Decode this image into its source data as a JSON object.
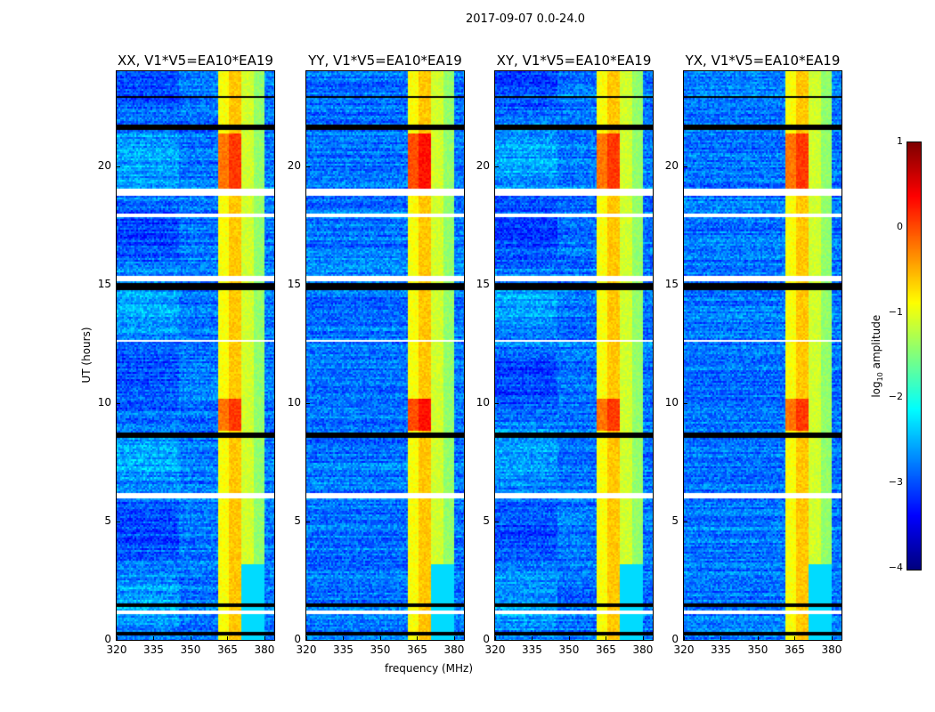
{
  "suptitle": "2017-09-07 0.0-24.0",
  "chart_data": {
    "type": "heatmap",
    "title": "2017-09-07 0.0-24.0",
    "xlabel": "frequency (MHz)",
    "ylabel": "UT (hours)",
    "xlim": [
      320,
      384
    ],
    "ylim": [
      0,
      24
    ],
    "xticks": [
      320,
      335,
      350,
      365,
      380
    ],
    "yticks": [
      0,
      5,
      10,
      15,
      20
    ],
    "panels": [
      {
        "title": "XX, V1*V5=EA10*EA19"
      },
      {
        "title": "YY, V1*V5=EA10*EA19"
      },
      {
        "title": "XY, V1*V5=EA10*EA19"
      },
      {
        "title": "YX, V1*V5=EA10*EA19"
      }
    ],
    "background_log_amplitude": -2.8,
    "bands": [
      {
        "f_start": 360.5,
        "f_end": 365.0,
        "log_amplitude": -0.9
      },
      {
        "f_start": 365.3,
        "f_end": 370.0,
        "log_amplitude": -0.6
      },
      {
        "f_start": 370.6,
        "f_end": 375.0,
        "log_amplitude": -1.1
      },
      {
        "f_start": 375.5,
        "f_end": 380.0,
        "log_amplitude": -1.4
      }
    ],
    "high_intensity_periods_hours": [
      [
        18.8,
        21.4
      ],
      [
        8.9,
        10.2
      ]
    ],
    "flagged_rows_hours": [
      [
        18.8,
        19.1
      ],
      [
        15.2,
        15.4
      ],
      [
        6.0,
        6.2
      ],
      [
        1.1,
        1.3
      ],
      [
        12.6,
        12.7
      ],
      [
        17.9,
        18.0
      ]
    ],
    "black_rows_hours": [
      [
        21.55,
        21.8
      ],
      [
        14.8,
        15.1
      ],
      [
        8.6,
        8.8
      ],
      [
        1.4,
        1.55
      ],
      [
        0.25,
        0.35
      ],
      [
        22.9,
        23.0
      ]
    ],
    "colorbar": {
      "label": "log10 amplitude",
      "label_main": "log",
      "label_sub": "10",
      "label_rest": " amplitude",
      "range": [
        -4,
        1
      ],
      "ticks": [
        "1",
        "0",
        "−1",
        "−2",
        "−3",
        "−4"
      ],
      "tick_values": [
        1,
        0,
        -1,
        -2,
        -3,
        -4
      ],
      "colormap": "jet"
    }
  }
}
